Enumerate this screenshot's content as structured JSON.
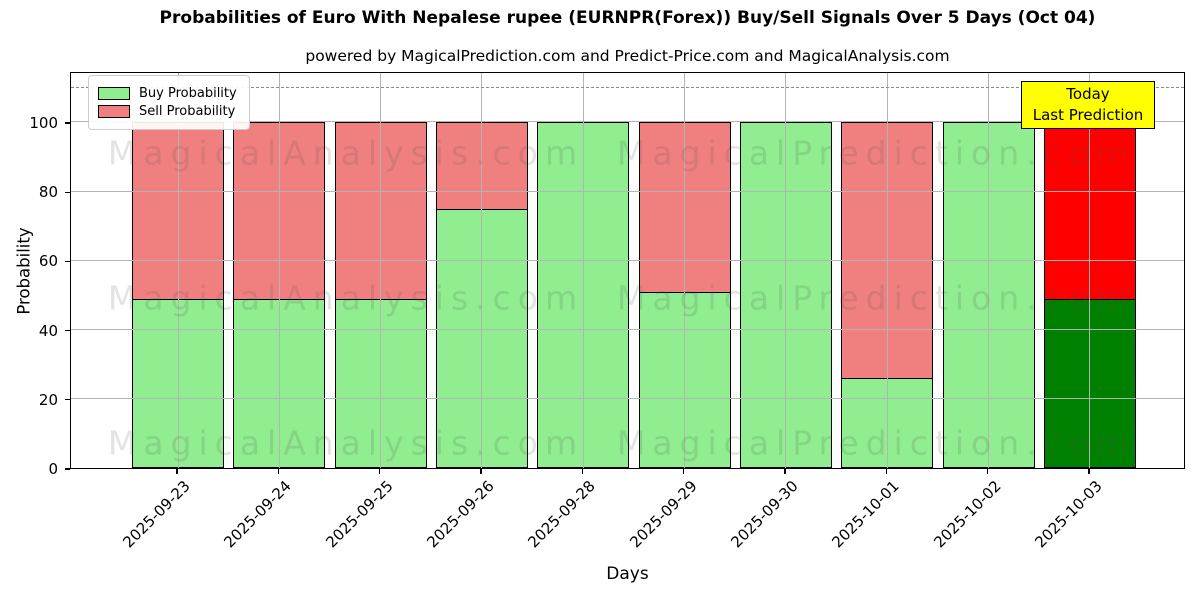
{
  "title": "Probabilities of Euro With Nepalese rupee (EURNPR(Forex)) Buy/Sell Signals Over 5 Days (Oct 04)",
  "subtitle": "powered by MagicalPrediction.com and Predict-Price.com and MagicalAnalysis.com",
  "axes": {
    "ylabel": "Probability",
    "xlabel": "Days",
    "yticks": [
      0,
      20,
      40,
      60,
      80,
      100
    ],
    "ymax": 114.7,
    "dashed_line_y": 110
  },
  "legend": {
    "items": [
      {
        "label": "Buy Probability",
        "color": "#90ee90"
      },
      {
        "label": "Sell Probability",
        "color": "#f08080"
      }
    ]
  },
  "annotation": {
    "line1": "Today",
    "line2": "Last Prediction",
    "bg_color": "#ffff00"
  },
  "watermarks": {
    "left_text": "MagicalAnalysis.com",
    "right_text": "MagicalPrediction.com"
  },
  "chart_data": {
    "type": "bar",
    "stacked": true,
    "title": "Probabilities of Euro With Nepalese rupee (EURNPR(Forex)) Buy/Sell Signals Over 5 Days (Oct 04)",
    "xlabel": "Days",
    "ylabel": "Probability",
    "ylim": [
      0,
      114.7
    ],
    "grid": true,
    "legend_position": "upper left",
    "categories": [
      "2025-09-23",
      "2025-09-24",
      "2025-09-25",
      "2025-09-26",
      "2025-09-28",
      "2025-09-29",
      "2025-09-30",
      "2025-10-01",
      "2025-10-02",
      "2025-10-03"
    ],
    "series": [
      {
        "name": "Buy Probability",
        "color": "#90ee90",
        "values": [
          49,
          49,
          49,
          75,
          100,
          51,
          100,
          26,
          100,
          49
        ]
      },
      {
        "name": "Sell Probability",
        "color": "#f08080",
        "values": [
          51,
          51,
          51,
          25,
          0,
          49,
          0,
          74,
          0,
          51
        ]
      }
    ],
    "last_bar_highlight": {
      "buy_color": "#008000",
      "sell_color": "#ff0000"
    },
    "dashed_reference_line": 110
  }
}
